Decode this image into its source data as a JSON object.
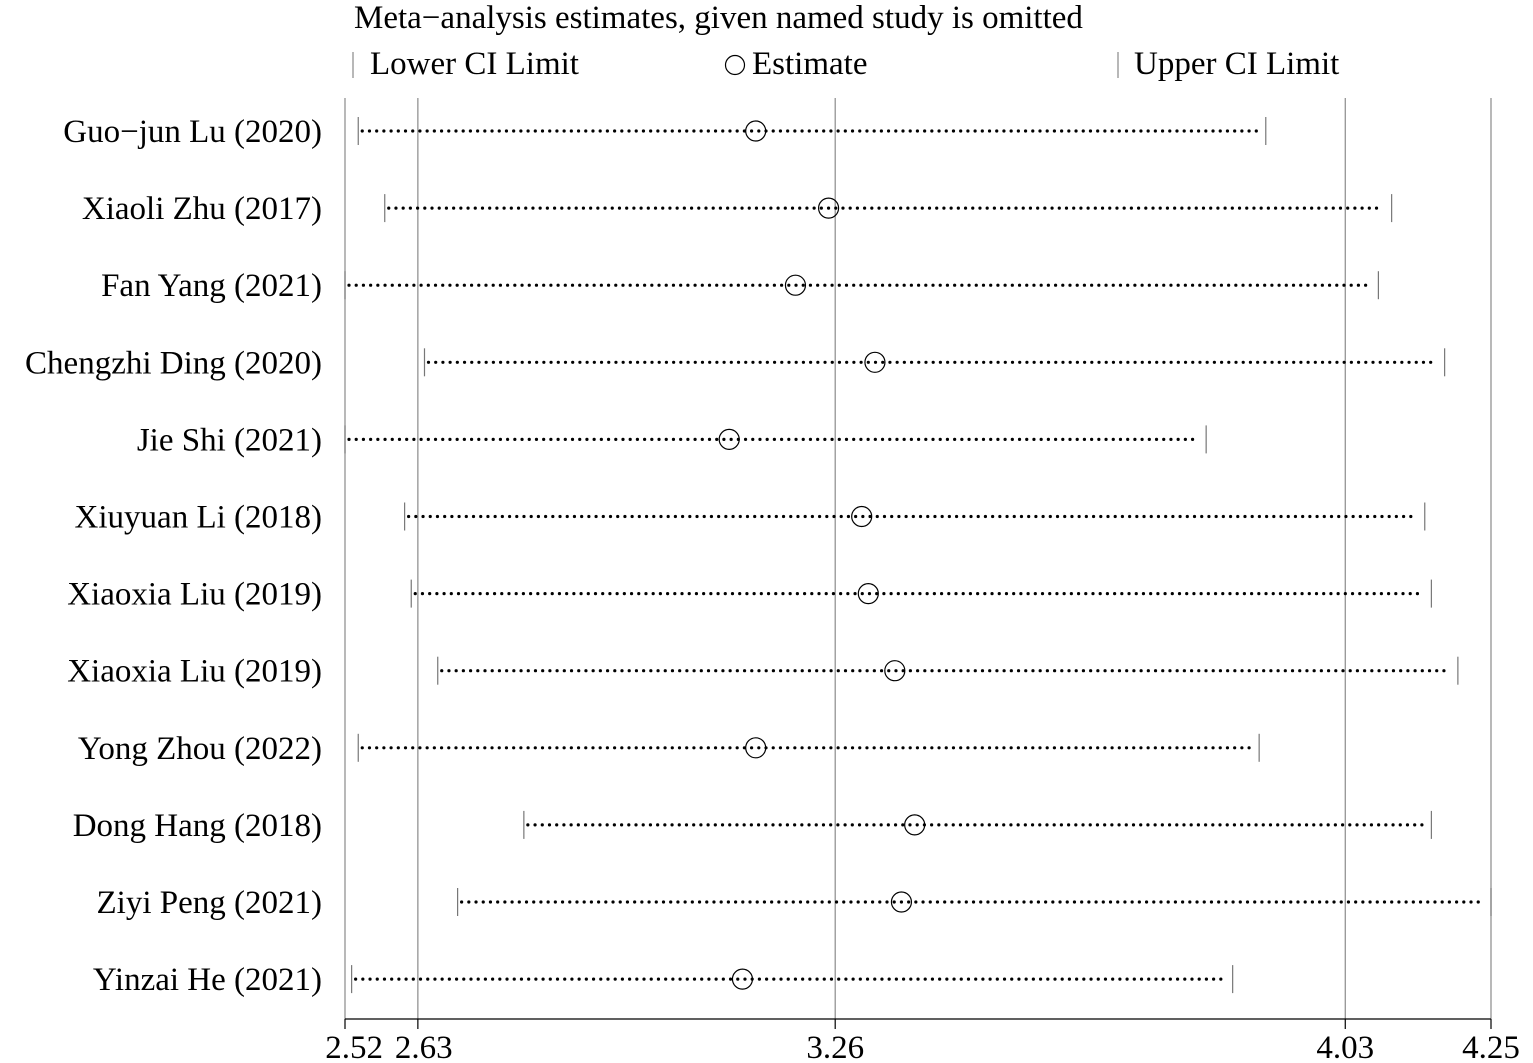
{
  "chart_data": {
    "type": "forest-sensitivity",
    "title": "Meta−analysis estimates, given named study is omitted",
    "legend": {
      "lower": "Lower CI Limit",
      "estimate": "Estimate",
      "upper": "Upper CI Limit",
      "placement": "top"
    },
    "xlim": [
      2.52,
      4.25
    ],
    "ticks": [
      {
        "value": 2.52,
        "label": "2.52"
      },
      {
        "value": 2.63,
        "label": "2.63"
      },
      {
        "value": 3.26,
        "label": "3.26"
      },
      {
        "value": 4.03,
        "label": "4.03"
      },
      {
        "value": 4.25,
        "label": "4.25"
      }
    ],
    "reference_lines": [
      2.52,
      2.63,
      3.26,
      4.03,
      4.25
    ],
    "studies": [
      {
        "name": "Guo−jun Lu (2020)",
        "lower": 2.54,
        "estimate": 3.14,
        "upper": 3.91
      },
      {
        "name": "Xiaoli Zhu (2017)",
        "lower": 2.58,
        "estimate": 3.25,
        "upper": 4.1
      },
      {
        "name": "Fan Yang (2021)",
        "lower": 2.52,
        "estimate": 3.2,
        "upper": 4.08
      },
      {
        "name": "Chengzhi Ding (2020)",
        "lower": 2.64,
        "estimate": 3.32,
        "upper": 4.18
      },
      {
        "name": "Jie Shi (2021)",
        "lower": 2.52,
        "estimate": 3.1,
        "upper": 3.82
      },
      {
        "name": "Xiuyuan Li (2018)",
        "lower": 2.61,
        "estimate": 3.3,
        "upper": 4.15
      },
      {
        "name": "Xiaoxia Liu (2019)",
        "lower": 2.62,
        "estimate": 3.31,
        "upper": 4.16
      },
      {
        "name": "Xiaoxia Liu (2019)",
        "lower": 2.66,
        "estimate": 3.35,
        "upper": 4.2
      },
      {
        "name": "Yong Zhou (2022)",
        "lower": 2.54,
        "estimate": 3.14,
        "upper": 3.9
      },
      {
        "name": "Dong Hang (2018)",
        "lower": 2.79,
        "estimate": 3.38,
        "upper": 4.16
      },
      {
        "name": "Ziyi Peng (2021)",
        "lower": 2.69,
        "estimate": 3.36,
        "upper": 4.25
      },
      {
        "name": "Yinzai He (2021)",
        "lower": 2.53,
        "estimate": 3.12,
        "upper": 3.86
      }
    ],
    "grid": false
  }
}
